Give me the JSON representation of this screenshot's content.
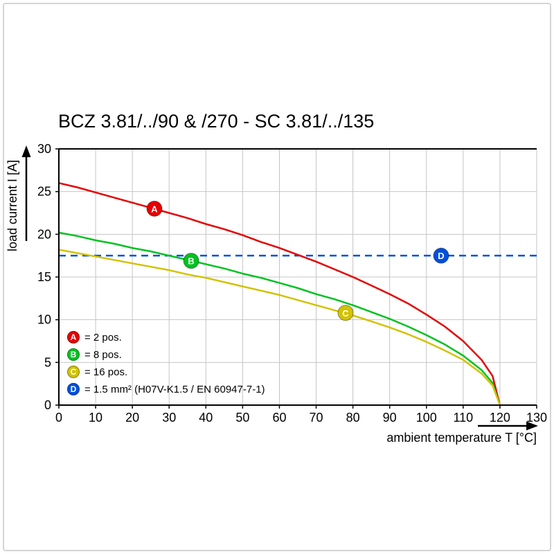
{
  "chart_data": {
    "type": "line",
    "title": "BCZ 3.81/../90 & /270 - SC 3.81/../135",
    "xlabel": "ambient temperature T [°C]",
    "ylabel": "load current I [A]",
    "xlim": [
      0,
      130
    ],
    "ylim": [
      0,
      30
    ],
    "xticks": [
      0,
      10,
      20,
      30,
      40,
      50,
      60,
      70,
      80,
      90,
      100,
      110,
      120,
      130
    ],
    "yticks": [
      0,
      5,
      10,
      15,
      20,
      25,
      30
    ],
    "grid": true,
    "colors": {
      "grid": "#c4c4c4",
      "axis": "#000000",
      "background": "#ffffff"
    },
    "series": [
      {
        "id": "A",
        "label": "= 2 pos.",
        "color": "#e60000",
        "marker_at": [
          26,
          23.0
        ],
        "points": [
          [
            0,
            26
          ],
          [
            5,
            25.5
          ],
          [
            10,
            24.9
          ],
          [
            15,
            24.3
          ],
          [
            20,
            23.7
          ],
          [
            25,
            23.1
          ],
          [
            30,
            22.5
          ],
          [
            35,
            21.9
          ],
          [
            40,
            21.2
          ],
          [
            45,
            20.6
          ],
          [
            50,
            19.9
          ],
          [
            55,
            19.1
          ],
          [
            60,
            18.4
          ],
          [
            65,
            17.6
          ],
          [
            70,
            16.8
          ],
          [
            75,
            15.9
          ],
          [
            80,
            15
          ],
          [
            85,
            14
          ],
          [
            90,
            13
          ],
          [
            95,
            11.9
          ],
          [
            100,
            10.6
          ],
          [
            105,
            9.2
          ],
          [
            110,
            7.5
          ],
          [
            115,
            5.3
          ],
          [
            118,
            3.4
          ],
          [
            120,
            0
          ]
        ]
      },
      {
        "id": "B",
        "label": "= 8 pos.",
        "color": "#00c220",
        "marker_at": [
          36,
          16.9
        ],
        "points": [
          [
            0,
            20.2
          ],
          [
            5,
            19.8
          ],
          [
            10,
            19.3
          ],
          [
            15,
            18.9
          ],
          [
            20,
            18.4
          ],
          [
            25,
            18
          ],
          [
            30,
            17.5
          ],
          [
            35,
            17
          ],
          [
            40,
            16.5
          ],
          [
            45,
            16
          ],
          [
            50,
            15.4
          ],
          [
            55,
            14.9
          ],
          [
            60,
            14.3
          ],
          [
            65,
            13.7
          ],
          [
            70,
            13
          ],
          [
            75,
            12.4
          ],
          [
            80,
            11.7
          ],
          [
            85,
            10.9
          ],
          [
            90,
            10.1
          ],
          [
            95,
            9.2
          ],
          [
            100,
            8.2
          ],
          [
            105,
            7.1
          ],
          [
            110,
            5.8
          ],
          [
            115,
            4.1
          ],
          [
            118,
            2.6
          ],
          [
            120,
            0
          ]
        ]
      },
      {
        "id": "C",
        "label": "= 16 pos.",
        "color": "#d2c200",
        "marker_at": [
          78,
          10.8
        ],
        "points": [
          [
            0,
            18.2
          ],
          [
            5,
            17.8
          ],
          [
            10,
            17.4
          ],
          [
            15,
            17
          ],
          [
            20,
            16.6
          ],
          [
            25,
            16.2
          ],
          [
            30,
            15.8
          ],
          [
            35,
            15.3
          ],
          [
            40,
            14.9
          ],
          [
            45,
            14.4
          ],
          [
            50,
            13.9
          ],
          [
            55,
            13.4
          ],
          [
            60,
            12.9
          ],
          [
            65,
            12.3
          ],
          [
            70,
            11.7
          ],
          [
            75,
            11.1
          ],
          [
            80,
            10.5
          ],
          [
            85,
            9.8
          ],
          [
            90,
            9.1
          ],
          [
            95,
            8.3
          ],
          [
            100,
            7.4
          ],
          [
            105,
            6.4
          ],
          [
            110,
            5.3
          ],
          [
            115,
            3.7
          ],
          [
            118,
            2.3
          ],
          [
            120,
            0
          ]
        ]
      }
    ],
    "reference_line": {
      "id": "D",
      "label": "= 1.5 mm² (H07V-K1.5 / EN 60947-7-1)",
      "color": "#0050dc",
      "y": 17.5,
      "style": "dashed",
      "marker_at": [
        104,
        17.5
      ]
    },
    "legend_position": "bottom-left-inside"
  }
}
